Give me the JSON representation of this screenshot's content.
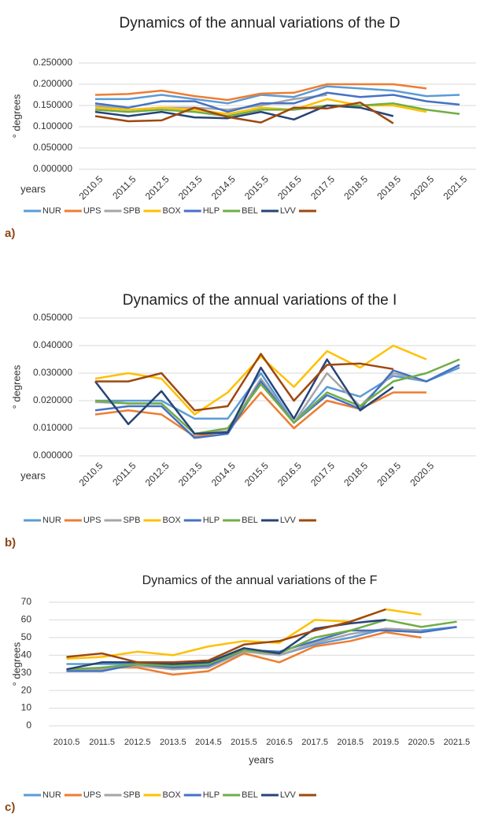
{
  "chart_data": [
    {
      "type": "line",
      "title": "Dynamics of the annual variations of the D",
      "panel_label": "a)",
      "y_label": "° degrees",
      "x_label": "years",
      "grid": true,
      "x_label_rotation": "rotated",
      "categories": [
        "2010.5",
        "2011.5",
        "2012.5",
        "2013.5",
        "2014.5",
        "2015.5",
        "2016.5",
        "2017.5",
        "2018.5",
        "2019.5",
        "2020.5",
        "2021.5"
      ],
      "ylim": [
        0,
        0.25
      ],
      "yticks": [
        {
          "value": 0,
          "label": "0.000000"
        },
        {
          "value": 0.05,
          "label": "0.050000"
        },
        {
          "value": 0.1,
          "label": "0.100000"
        },
        {
          "value": 0.15,
          "label": "0.150000"
        },
        {
          "value": 0.2,
          "label": "0.200000"
        },
        {
          "value": 0.25,
          "label": "0.250000"
        }
      ],
      "series": [
        {
          "name": "NUR",
          "color": "#5b9bd5",
          "values": [
            0.165,
            0.165,
            0.175,
            0.165,
            0.155,
            0.175,
            0.17,
            0.195,
            0.19,
            0.185,
            0.172,
            0.175
          ]
        },
        {
          "name": "UPS",
          "color": "#ed7d31",
          "values": [
            0.175,
            0.177,
            0.185,
            0.172,
            0.163,
            0.178,
            0.18,
            0.2,
            0.2,
            0.2,
            0.19,
            null
          ]
        },
        {
          "name": "SPB",
          "color": "#a5a5a5",
          "values": [
            0.15,
            0.14,
            0.145,
            0.145,
            0.14,
            0.15,
            0.165,
            0.175,
            null,
            null,
            null,
            null
          ]
        },
        {
          "name": "BOX",
          "color": "#ffc000",
          "values": [
            0.145,
            0.14,
            0.145,
            0.14,
            0.13,
            0.145,
            0.14,
            0.165,
            0.15,
            0.15,
            0.135,
            null
          ]
        },
        {
          "name": "HLP",
          "color": "#4472c4",
          "values": [
            0.155,
            0.145,
            0.16,
            0.16,
            0.135,
            0.155,
            0.155,
            0.18,
            0.17,
            0.175,
            0.16,
            0.152
          ]
        },
        {
          "name": "BEL",
          "color": "#70ad47",
          "values": [
            0.14,
            0.135,
            0.14,
            0.135,
            0.125,
            0.14,
            0.14,
            0.15,
            0.15,
            0.155,
            0.14,
            0.13
          ]
        },
        {
          "name": "LVV",
          "color": "#264478",
          "values": [
            0.135,
            0.125,
            0.135,
            0.122,
            0.12,
            0.135,
            0.117,
            0.15,
            0.145,
            0.125,
            null,
            null
          ]
        },
        {
          "name": null,
          "color": "#9e480e",
          "values": [
            0.125,
            0.113,
            0.115,
            0.145,
            0.123,
            0.11,
            0.145,
            0.143,
            0.157,
            0.108,
            null,
            null
          ]
        }
      ]
    },
    {
      "type": "line",
      "title": "Dynamics of the annual variations of the I",
      "panel_label": "b)",
      "y_label": "° degrees",
      "x_label": "years",
      "grid": true,
      "x_label_rotation": "rotated",
      "categories": [
        "2010.5",
        "2011.5",
        "2012.5",
        "2013.5",
        "2014.5",
        "2015.5",
        "2016.5",
        "2017.5",
        "2018.5",
        "2019.5",
        "2020.5",
        null
      ],
      "ylim": [
        0,
        0.05
      ],
      "yticks": [
        {
          "value": 0,
          "label": "0.000000"
        },
        {
          "value": 0.01,
          "label": "0.010000"
        },
        {
          "value": 0.02,
          "label": "0.020000"
        },
        {
          "value": 0.03,
          "label": "0.030000"
        },
        {
          "value": 0.04,
          "label": "0.040000"
        },
        {
          "value": 0.05,
          "label": "0.050000"
        }
      ],
      "series": [
        {
          "name": "NUR",
          "color": "#5b9bd5",
          "values": [
            0.02,
            0.02,
            0.02,
            0.0135,
            0.0135,
            0.03,
            0.012,
            0.025,
            0.0215,
            0.029,
            0.027,
            0.032
          ]
        },
        {
          "name": "UPS",
          "color": "#ed7d31",
          "values": [
            0.015,
            0.0165,
            0.015,
            0.007,
            0.009,
            0.023,
            0.01,
            0.02,
            0.017,
            0.023,
            0.023,
            null
          ]
        },
        {
          "name": "SPB",
          "color": "#a5a5a5",
          "values": [
            0.0195,
            0.019,
            0.019,
            0.008,
            0.009,
            0.028,
            0.012,
            0.03,
            0.018,
            0.03,
            0.027,
            0.033
          ]
        },
        {
          "name": "BOX",
          "color": "#ffc000",
          "values": [
            0.028,
            0.03,
            0.028,
            0.015,
            0.023,
            0.036,
            0.025,
            0.038,
            0.032,
            0.04,
            0.035,
            null
          ]
        },
        {
          "name": "HLP",
          "color": "#4472c4",
          "values": [
            0.0165,
            0.018,
            0.018,
            0.0065,
            0.008,
            0.027,
            0.012,
            0.022,
            0.017,
            0.031,
            0.027,
            0.033
          ]
        },
        {
          "name": "BEL",
          "color": "#70ad47",
          "values": [
            0.02,
            0.019,
            0.019,
            0.008,
            0.01,
            0.026,
            0.012,
            0.023,
            0.018,
            0.027,
            0.03,
            0.035
          ]
        },
        {
          "name": "LVV",
          "color": "#264478",
          "values": [
            0.027,
            0.0115,
            0.0235,
            0.008,
            0.0085,
            0.032,
            0.0135,
            0.035,
            0.0165,
            0.025,
            null,
            null
          ]
        },
        {
          "name": null,
          "color": "#9e480e",
          "values": [
            0.027,
            0.027,
            0.03,
            0.0165,
            0.018,
            0.037,
            0.02,
            0.033,
            0.0335,
            0.0315,
            null,
            null
          ]
        }
      ]
    },
    {
      "type": "line",
      "title": "Dynamics of the annual variations of the F",
      "panel_label": "c)",
      "y_label": "° degrees",
      "x_label": "years",
      "grid": true,
      "x_label_rotation": "horizontal",
      "categories": [
        "2010.5",
        "2011.5",
        "2012.5",
        "2013.5",
        "2014.5",
        "2015.5",
        "2016.5",
        "2017.5",
        "2018.5",
        "2019.5",
        "2020.5",
        "2021.5"
      ],
      "ylim": [
        0,
        70
      ],
      "yticks": [
        0,
        10,
        20,
        30,
        40,
        50,
        60,
        70
      ],
      "series": [
        {
          "name": "NUR",
          "color": "#5b9bd5",
          "values": [
            35,
            35,
            35,
            33,
            33,
            43,
            40,
            46,
            50,
            55,
            54,
            56
          ]
        },
        {
          "name": "UPS",
          "color": "#ed7d31",
          "values": [
            31,
            33,
            33,
            29,
            31,
            41,
            36,
            45,
            48,
            53,
            50,
            null
          ]
        },
        {
          "name": "SPB",
          "color": "#a5a5a5",
          "values": [
            32,
            32,
            34,
            32,
            33,
            42,
            40,
            47,
            52,
            55,
            54,
            null
          ]
        },
        {
          "name": "BOX",
          "color": "#ffc000",
          "values": [
            38,
            39,
            42,
            40,
            45,
            48,
            47,
            60,
            59,
            66,
            63,
            null
          ]
        },
        {
          "name": "HLP",
          "color": "#4472c4",
          "values": [
            31,
            31,
            35,
            33,
            34,
            43,
            42,
            48,
            54,
            54,
            53,
            56
          ]
        },
        {
          "name": "BEL",
          "color": "#70ad47",
          "values": [
            32,
            33,
            35,
            34,
            35,
            43,
            41,
            50,
            54,
            60,
            56,
            59
          ]
        },
        {
          "name": "LVV",
          "color": "#264478",
          "values": [
            32,
            36,
            36,
            35,
            36,
            44,
            41,
            55,
            58,
            60,
            null,
            null
          ]
        },
        {
          "name": null,
          "color": "#9e480e",
          "values": [
            39,
            41,
            36,
            36,
            37,
            46,
            48,
            54,
            59,
            66,
            null,
            null
          ]
        }
      ]
    }
  ]
}
